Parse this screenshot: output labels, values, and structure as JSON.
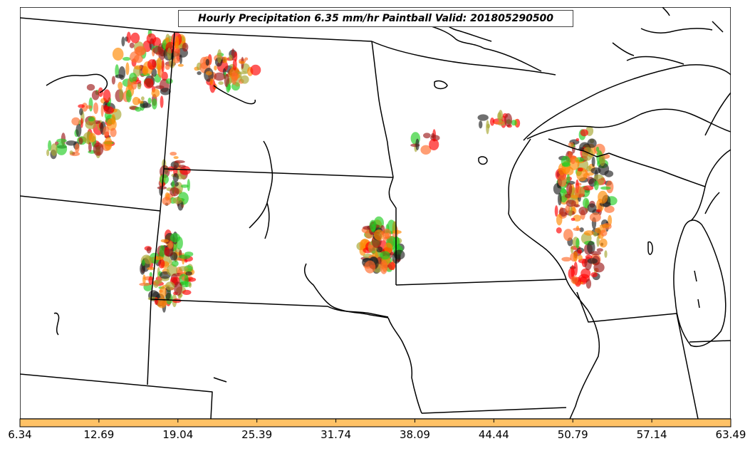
{
  "map": {
    "title": "Hourly Precipitation 6.35 mm/hr Paintball Valid: 201805290500"
  },
  "colorbar": {
    "color": "#ffc266",
    "ticks": [
      "6.34",
      "12.69",
      "19.04",
      "25.39",
      "31.74",
      "38.09",
      "44.44",
      "50.79",
      "57.14",
      "63.49"
    ]
  },
  "colors": {
    "paintball": [
      "#ff0000",
      "#ff8800",
      "#9c1a1a",
      "#22cc22",
      "#a6a630",
      "#222222",
      "#ff6a2a"
    ]
  }
}
